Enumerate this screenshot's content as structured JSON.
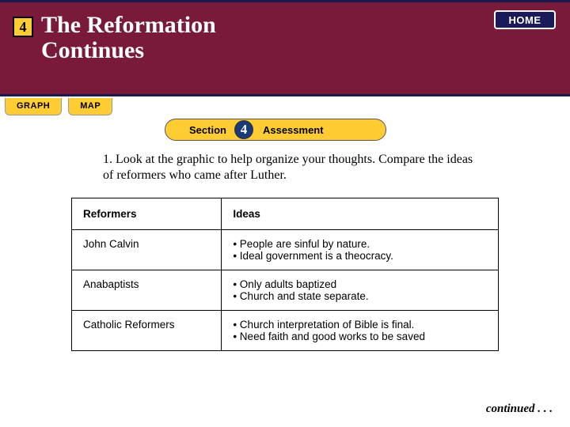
{
  "colors": {
    "header_bg": "#7a1a3a",
    "header_border": "#1a1a4a",
    "accent_yellow": "#ffcc33",
    "home_bg": "#1a1a5a",
    "section_num_bg": "#1a3a7a",
    "text_white": "#ffffff",
    "text_black": "#000000"
  },
  "header": {
    "chapter_number": "4",
    "title_line1": "The Reformation",
    "title_line2": "Continues",
    "home_label": "HOME"
  },
  "tabs": {
    "graph": "GRAPH",
    "map": "MAP"
  },
  "section_pill": {
    "label": "Section",
    "number": "4",
    "right": "Assessment"
  },
  "prompt": "1. Look at the graphic to help organize your thoughts. Compare the ideas of reformers who came after Luther.",
  "table": {
    "header": {
      "col1": "Reformers",
      "col2": "Ideas"
    },
    "rows": [
      {
        "name": "John Calvin",
        "idea1": "•  People are sinful by nature.",
        "idea2": "•  Ideal government is a theocracy."
      },
      {
        "name": "Anabaptists",
        "idea1": "•  Only adults baptized",
        "idea2": "•  Church and state separate."
      },
      {
        "name": "Catholic Reformers",
        "idea1": "•  Church interpretation of Bible is final.",
        "idea2": "•  Need faith and good works to be saved"
      }
    ]
  },
  "continued": "continued . . ."
}
